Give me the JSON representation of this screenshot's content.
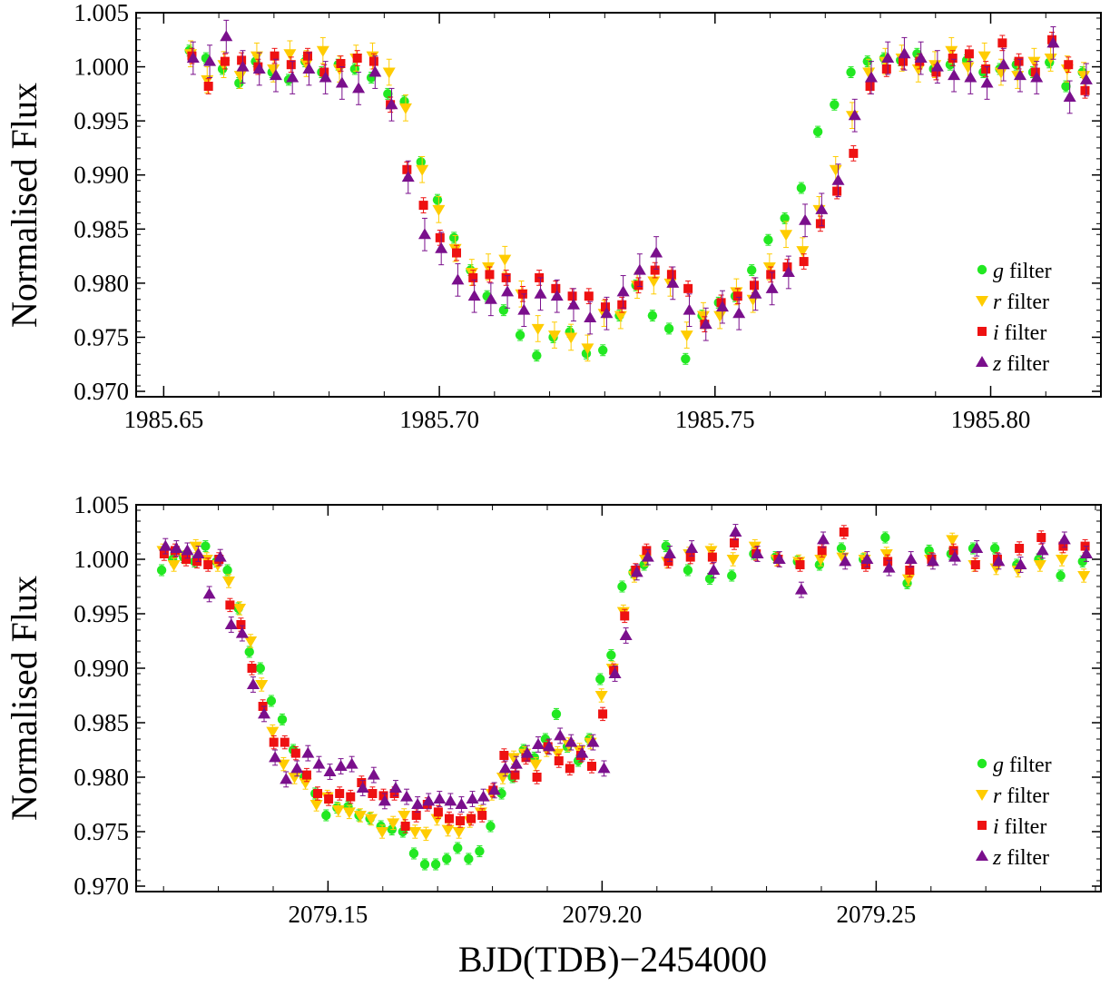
{
  "figure": {
    "xlabel": "BJD(TDB)−2454000",
    "legend_labels": [
      {
        "italic": "g",
        "text": " filter"
      },
      {
        "italic": "r",
        "text": " filter"
      },
      {
        "italic": "i",
        "text": " filter"
      },
      {
        "italic": "z",
        "text": " filter"
      }
    ],
    "colors": {
      "g": "#22e822",
      "r": "#ffcc00",
      "i": "#ee1111",
      "z": "#7a0f8c"
    },
    "marker_shapes": {
      "g": "circle",
      "r": "triangle-down",
      "i": "square",
      "z": "triangle-up"
    }
  },
  "chart_data": [
    {
      "type": "scatter",
      "ylabel": "Normalised Flux",
      "xlim": [
        1985.645,
        1985.82
      ],
      "ylim": [
        0.9695,
        1.005
      ],
      "x_ticks": [
        "1985.65",
        "1985.70",
        "1985.75",
        "1985.80"
      ],
      "y_ticks": [
        "0.970",
        "0.975",
        "0.980",
        "0.985",
        "0.990",
        "0.995",
        "1.000",
        "1.005"
      ],
      "legend_position": "bottom-right",
      "error_bars": true,
      "x": [
        1985.655,
        1985.658,
        1985.661,
        1985.664,
        1985.667,
        1985.67,
        1985.673,
        1985.676,
        1985.679,
        1985.682,
        1985.685,
        1985.688,
        1985.691,
        1985.694,
        1985.697,
        1985.7,
        1985.703,
        1985.706,
        1985.709,
        1985.712,
        1985.715,
        1985.718,
        1985.721,
        1985.724,
        1985.727,
        1985.73,
        1985.733,
        1985.736,
        1985.739,
        1985.742,
        1985.745,
        1985.748,
        1985.751,
        1985.754,
        1985.757,
        1985.76,
        1985.763,
        1985.766,
        1985.769,
        1985.772,
        1985.775,
        1985.778,
        1985.781,
        1985.784,
        1985.787,
        1985.79,
        1985.793,
        1985.796,
        1985.799,
        1985.802,
        1985.805,
        1985.808,
        1985.811,
        1985.814,
        1985.817
      ],
      "series": [
        {
          "name": "g filter",
          "key": "g",
          "err": 0.0005,
          "values": [
            1.0015,
            1.0008,
            0.9998,
            0.9985,
            1.0005,
            0.9995,
            0.9988,
            1.0005,
            0.9995,
            1.0002,
            0.9998,
            0.999,
            0.9975,
            0.9968,
            0.9912,
            0.9877,
            0.9842,
            0.9812,
            0.9788,
            0.9775,
            0.9752,
            0.9733,
            0.975,
            0.9755,
            0.9735,
            0.9738,
            0.977,
            0.9798,
            0.977,
            0.9758,
            0.973,
            0.977,
            0.9782,
            0.9788,
            0.9812,
            0.984,
            0.986,
            0.9888,
            0.994,
            0.9965,
            0.9995,
            1.0005,
            1.0008,
            1.0006,
            1.0012,
            0.9998,
            1.0002,
            1.0006,
            0.9995,
            0.9998,
            1.0002,
            0.9995,
            1.0004,
            0.9982,
            0.9995
          ]
        },
        {
          "name": "r filter",
          "key": "r",
          "err": 0.0012,
          "values": [
            1.0012,
            0.9988,
            1.0002,
            0.9992,
            1.001,
            0.9998,
            1.0012,
            1.0003,
            1.0015,
            0.9998,
            1.0008,
            1.001,
            0.9995,
            0.9962,
            0.9905,
            0.9868,
            0.9832,
            0.981,
            0.9815,
            0.9822,
            0.979,
            0.9758,
            0.9752,
            0.975,
            0.974,
            0.9772,
            0.977,
            0.9798,
            0.9802,
            0.98,
            0.9752,
            0.977,
            0.977,
            0.9792,
            0.9785,
            0.9815,
            0.9845,
            0.983,
            0.9868,
            0.9905,
            0.9955,
            0.9995,
            1.0005,
            1.0008,
            0.9998,
            1.0002,
            1.0015,
            1.0,
            1.001,
            0.9995,
            0.9992,
            1.0005,
            1.0008,
            0.9998,
            0.9992
          ]
        },
        {
          "name": "i filter",
          "key": "i",
          "err": 0.0007,
          "values": [
            1.001,
            0.9982,
            1.0005,
            1.0006,
            1.0,
            1.001,
            1.0002,
            1.001,
            0.9995,
            1.0003,
            1.0008,
            1.0005,
            0.9965,
            0.9905,
            0.9872,
            0.9842,
            0.9828,
            0.9805,
            0.9808,
            0.9805,
            0.979,
            0.9805,
            0.9795,
            0.9788,
            0.9788,
            0.9778,
            0.978,
            0.9798,
            0.9812,
            0.9808,
            0.9795,
            0.9762,
            0.9782,
            0.9788,
            0.9798,
            0.9808,
            0.9815,
            0.982,
            0.9855,
            0.9885,
            0.992,
            0.9982,
            0.9998,
            1.0005,
            1.0005,
            0.9995,
            1.0008,
            1.0012,
            0.9998,
            1.0022,
            1.0005,
            0.9995,
            1.0025,
            1.0002,
            0.9978
          ]
        },
        {
          "name": "z filter",
          "key": "z",
          "err": 0.0015,
          "values": [
            1.0008,
            1.0005,
            1.0028,
            1.0,
            0.9998,
            0.9992,
            0.999,
            0.9998,
            0.999,
            0.9985,
            0.998,
            0.9995,
            0.9965,
            0.9898,
            0.9845,
            0.9832,
            0.9803,
            0.9788,
            0.9785,
            0.9792,
            0.9775,
            0.979,
            0.9788,
            0.978,
            0.9768,
            0.9772,
            0.9792,
            0.9812,
            0.9828,
            0.98,
            0.9775,
            0.9762,
            0.9778,
            0.9772,
            0.979,
            0.9795,
            0.981,
            0.9858,
            0.9868,
            0.9895,
            0.9955,
            0.999,
            1.0008,
            1.0012,
            1.0008,
            1.0,
            0.9992,
            0.999,
            0.9985,
            1.0002,
            0.9992,
            0.999,
            1.0022,
            0.9972,
            0.9988
          ]
        }
      ]
    },
    {
      "type": "scatter",
      "ylabel": "Normalised Flux",
      "xlim": [
        2079.115,
        2079.291
      ],
      "ylim": [
        0.9695,
        1.005
      ],
      "x_ticks": [
        "2079.15",
        "2079.20",
        "2079.25"
      ],
      "y_ticks": [
        "0.970",
        "0.975",
        "0.980",
        "0.985",
        "0.990",
        "0.995",
        "1.000",
        "1.005"
      ],
      "legend_position": "bottom-right",
      "error_bars": true,
      "x": [
        2079.12,
        2079.122,
        2079.124,
        2079.126,
        2079.128,
        2079.13,
        2079.132,
        2079.134,
        2079.136,
        2079.138,
        2079.14,
        2079.142,
        2079.144,
        2079.146,
        2079.148,
        2079.15,
        2079.152,
        2079.154,
        2079.156,
        2079.158,
        2079.16,
        2079.162,
        2079.164,
        2079.166,
        2079.168,
        2079.17,
        2079.172,
        2079.174,
        2079.176,
        2079.178,
        2079.18,
        2079.182,
        2079.184,
        2079.186,
        2079.188,
        2079.19,
        2079.192,
        2079.194,
        2079.196,
        2079.198,
        2079.2,
        2079.202,
        2079.204,
        2079.206,
        2079.208,
        2079.212,
        2079.216,
        2079.22,
        2079.224,
        2079.228,
        2079.232,
        2079.236,
        2079.24,
        2079.244,
        2079.248,
        2079.252,
        2079.256,
        2079.26,
        2079.264,
        2079.268,
        2079.272,
        2079.276,
        2079.28,
        2079.284,
        2079.288
      ],
      "series": [
        {
          "name": "g filter",
          "key": "g",
          "err": 0.0005,
          "values": [
            0.999,
            1.0,
            1.0002,
            0.9998,
            1.0012,
            0.9998,
            0.999,
            0.9955,
            0.9915,
            0.99,
            0.987,
            0.9853,
            0.9825,
            0.98,
            0.9785,
            0.9765,
            0.9772,
            0.9773,
            0.9765,
            0.9762,
            0.9755,
            0.9752,
            0.975,
            0.973,
            0.972,
            0.972,
            0.9725,
            0.9735,
            0.9725,
            0.9732,
            0.9755,
            0.9785,
            0.98,
            0.9825,
            0.9818,
            0.9835,
            0.9858,
            0.9828,
            0.9815,
            0.9835,
            0.989,
            0.9912,
            0.9975,
            0.9988,
            0.9995,
            1.0012,
            0.999,
            0.9982,
            0.9985,
            1.0005,
            1.0002,
            0.9998,
            0.9995,
            1.001,
            1.0,
            1.002,
            0.9978,
            1.0008,
            1.0005,
            1.001,
            1.001,
            0.9995,
            1.0,
            0.9985,
            0.9998
          ]
        },
        {
          "name": "r filter",
          "key": "r",
          "err": 0.0006,
          "values": [
            1.0008,
            0.9995,
            1.0002,
            1.0012,
            1.0,
            0.9995,
            0.998,
            0.9955,
            0.9925,
            0.9885,
            0.9842,
            0.9812,
            0.98,
            0.9795,
            0.9775,
            0.9782,
            0.977,
            0.9768,
            0.9765,
            0.9762,
            0.975,
            0.9758,
            0.9765,
            0.975,
            0.9748,
            0.9762,
            0.9752,
            0.975,
            0.976,
            0.9768,
            0.9785,
            0.98,
            0.9818,
            0.9822,
            0.9812,
            0.9825,
            0.9822,
            0.983,
            0.9825,
            0.9832,
            0.9875,
            0.99,
            0.9952,
            0.9985,
            1.0,
            0.9998,
            1.0005,
            1.0008,
            1.0,
            1.0012,
            1.0,
            0.9998,
            1.0,
            1.0002,
            1.0,
            1.0005,
            0.9982,
            1.0,
            1.0018,
            0.9995,
            0.9992,
            0.999,
            0.9995,
            1.0,
            0.9985
          ]
        },
        {
          "name": "i filter",
          "key": "i",
          "err": 0.0006,
          "values": [
            1.0005,
            1.0008,
            1.0,
            0.9998,
            0.9995,
            1.0,
            0.9958,
            0.994,
            0.99,
            0.9865,
            0.9832,
            0.9832,
            0.9822,
            0.9802,
            0.9785,
            0.978,
            0.9785,
            0.9782,
            0.9795,
            0.9785,
            0.9783,
            0.9785,
            0.9755,
            0.9765,
            0.9775,
            0.9768,
            0.9762,
            0.976,
            0.9762,
            0.9765,
            0.9788,
            0.982,
            0.9802,
            0.9818,
            0.98,
            0.9828,
            0.9815,
            0.9808,
            0.982,
            0.981,
            0.9858,
            0.9898,
            0.9948,
            0.999,
            1.0008,
            0.9998,
            1.0002,
            1.0002,
            1.0015,
            1.0005,
            1.0,
            0.9995,
            1.0008,
            1.0025,
            0.9995,
            0.9998,
            0.999,
            1.0,
            1.0008,
            0.9995,
            1.0,
            1.001,
            1.002,
            1.0012,
            1.0012
          ]
        },
        {
          "name": "z filter",
          "key": "z",
          "err": 0.0007,
          "values": [
            1.0012,
            1.001,
            1.0008,
            1.0005,
            0.9968,
            1.0002,
            0.994,
            0.9932,
            0.9885,
            0.9858,
            0.9818,
            0.9798,
            0.9808,
            0.9822,
            0.9812,
            0.9805,
            0.981,
            0.9812,
            0.979,
            0.9802,
            0.9778,
            0.979,
            0.9782,
            0.9775,
            0.9778,
            0.978,
            0.9778,
            0.9775,
            0.978,
            0.9782,
            0.9788,
            0.9808,
            0.9812,
            0.9822,
            0.983,
            0.9828,
            0.9838,
            0.9832,
            0.9822,
            0.9832,
            0.9808,
            0.9895,
            0.993,
            0.9988,
            1.0002,
            1.0005,
            1.001,
            0.999,
            1.0025,
            1.0005,
            1.0,
            0.9972,
            1.0018,
            0.9998,
            1.0,
            0.9992,
            1.0,
            0.9998,
            1.0002,
            1.001,
            0.9998,
            0.9995,
            1.0008,
            1.0018,
            1.0005
          ]
        }
      ]
    }
  ]
}
